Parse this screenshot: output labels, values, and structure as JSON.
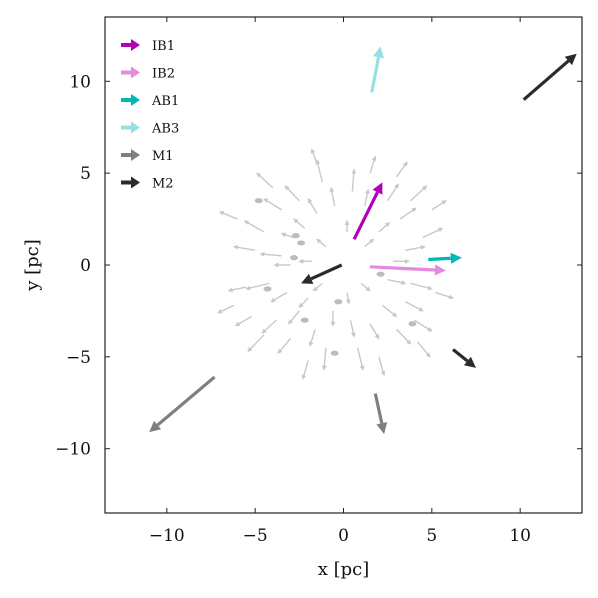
{
  "chart_data": {
    "type": "quiver",
    "title": "",
    "xlabel": "x [pc]",
    "ylabel": "y [pc]",
    "xlim": [
      -13.5,
      13.5
    ],
    "ylim": [
      -13.5,
      13.5
    ],
    "xticks": [
      -10,
      -5,
      0,
      5,
      10
    ],
    "yticks": [
      -10,
      -5,
      0,
      5,
      10
    ],
    "xtick_labels": [
      "−10",
      "−5",
      "0",
      "5",
      "10"
    ],
    "ytick_labels": [
      "−10",
      "−5",
      "0",
      "5",
      "10"
    ],
    "grid": false,
    "legend_position": "upper-left",
    "series": [
      {
        "name": "IB1",
        "color": "#b000b8",
        "arrows": [
          {
            "x": 0.6,
            "y": 1.4,
            "dx": 1.6,
            "dy": 3.1
          }
        ]
      },
      {
        "name": "IB2",
        "color": "#e68ae0",
        "arrows": [
          {
            "x": 1.5,
            "y": -0.1,
            "dx": 4.3,
            "dy": -0.2
          }
        ]
      },
      {
        "name": "AB1",
        "color": "#00b8b8",
        "arrows": [
          {
            "x": 4.8,
            "y": 0.3,
            "dx": 1.9,
            "dy": 0.1
          }
        ]
      },
      {
        "name": "AB3",
        "color": "#95e0e5",
        "arrows": [
          {
            "x": 1.6,
            "y": 9.4,
            "dx": 0.5,
            "dy": 2.5
          }
        ]
      },
      {
        "name": "M1",
        "color": "#7f7f7f",
        "arrows": [
          {
            "x": -7.3,
            "y": -6.1,
            "dx": -3.7,
            "dy": -3.0
          },
          {
            "x": 1.8,
            "y": -7.0,
            "dx": 0.5,
            "dy": -2.2
          }
        ]
      },
      {
        "name": "M2",
        "color": "#2b2b2b",
        "arrows": [
          {
            "x": -0.1,
            "y": 0.0,
            "dx": -2.3,
            "dy": -1.0
          },
          {
            "x": 6.2,
            "y": -4.6,
            "dx": 1.3,
            "dy": -1.0
          },
          {
            "x": 10.2,
            "y": 9.0,
            "dx": 3.0,
            "dy": 2.5
          }
        ]
      }
    ],
    "background_field": {
      "color": "#c8c8c8",
      "description_of_values": "cloud of small grey arrows radiating outward from the origin",
      "arrows": [
        {
          "x": -2.2,
          "y": 2.0,
          "dx": -0.6,
          "dy": 0.5
        },
        {
          "x": -2.8,
          "y": 1.5,
          "dx": -0.7,
          "dy": 0.2
        },
        {
          "x": -3.5,
          "y": 0.5,
          "dx": -1.2,
          "dy": 0.1
        },
        {
          "x": -4.5,
          "y": 1.8,
          "dx": -1.1,
          "dy": 0.6
        },
        {
          "x": -5.0,
          "y": 0.8,
          "dx": -1.2,
          "dy": 0.2
        },
        {
          "x": -4.2,
          "y": -1.0,
          "dx": -1.3,
          "dy": -0.3
        },
        {
          "x": -5.5,
          "y": -1.2,
          "dx": -1.0,
          "dy": -0.2
        },
        {
          "x": -3.2,
          "y": -1.5,
          "dx": -0.9,
          "dy": -0.5
        },
        {
          "x": -2.5,
          "y": -2.5,
          "dx": -0.6,
          "dy": -0.7
        },
        {
          "x": -3.8,
          "y": -3.0,
          "dx": -0.8,
          "dy": -0.7
        },
        {
          "x": -3.0,
          "y": -4.0,
          "dx": -0.7,
          "dy": -0.8
        },
        {
          "x": -1.6,
          "y": -3.5,
          "dx": -0.3,
          "dy": -0.9
        },
        {
          "x": -1.0,
          "y": -4.5,
          "dx": -0.1,
          "dy": -1.2
        },
        {
          "x": -0.6,
          "y": -2.5,
          "dx": 0.0,
          "dy": -0.8
        },
        {
          "x": 0.4,
          "y": -3.0,
          "dx": 0.2,
          "dy": -0.9
        },
        {
          "x": 0.8,
          "y": -4.5,
          "dx": 0.3,
          "dy": -1.2
        },
        {
          "x": 1.5,
          "y": -3.2,
          "dx": 0.5,
          "dy": -0.8
        },
        {
          "x": 2.2,
          "y": -2.2,
          "dx": 0.8,
          "dy": -0.6
        },
        {
          "x": 3.0,
          "y": -3.5,
          "dx": 0.8,
          "dy": -0.8
        },
        {
          "x": 3.5,
          "y": -2.0,
          "dx": 1.0,
          "dy": -0.5
        },
        {
          "x": 4.0,
          "y": -3.0,
          "dx": 1.0,
          "dy": -0.6
        },
        {
          "x": 2.5,
          "y": -0.8,
          "dx": 1.0,
          "dy": -0.2
        },
        {
          "x": 3.5,
          "y": 0.8,
          "dx": 1.1,
          "dy": 0.2
        },
        {
          "x": 3.8,
          "y": -1.0,
          "dx": 1.2,
          "dy": -0.3
        },
        {
          "x": 4.5,
          "y": 1.5,
          "dx": 1.1,
          "dy": 0.5
        },
        {
          "x": 3.2,
          "y": 2.5,
          "dx": 0.9,
          "dy": 0.6
        },
        {
          "x": 2.5,
          "y": 3.5,
          "dx": 0.6,
          "dy": 0.9
        },
        {
          "x": 3.8,
          "y": 3.5,
          "dx": 0.9,
          "dy": 0.8
        },
        {
          "x": 1.2,
          "y": 3.2,
          "dx": 0.2,
          "dy": 0.9
        },
        {
          "x": 0.5,
          "y": 4.0,
          "dx": 0.1,
          "dy": 1.2
        },
        {
          "x": -0.5,
          "y": 3.2,
          "dx": -0.2,
          "dy": 1.0
        },
        {
          "x": -1.2,
          "y": 4.5,
          "dx": -0.3,
          "dy": 1.2
        },
        {
          "x": -1.5,
          "y": 2.8,
          "dx": -0.5,
          "dy": 0.8
        },
        {
          "x": -2.5,
          "y": 3.5,
          "dx": -0.8,
          "dy": 0.8
        },
        {
          "x": -3.5,
          "y": 3.0,
          "dx": -1.0,
          "dy": 0.6
        },
        {
          "x": -4.0,
          "y": 4.2,
          "dx": -0.9,
          "dy": 0.8
        },
        {
          "x": -1.0,
          "y": 1.0,
          "dx": -0.5,
          "dy": 0.4
        },
        {
          "x": -1.8,
          "y": 0.2,
          "dx": -0.7,
          "dy": 0.0
        },
        {
          "x": -1.2,
          "y": -1.0,
          "dx": -0.5,
          "dy": -0.4
        },
        {
          "x": 0.2,
          "y": -1.5,
          "dx": 0.1,
          "dy": -0.6
        },
        {
          "x": 1.0,
          "y": -1.0,
          "dx": 0.5,
          "dy": -0.4
        },
        {
          "x": 1.2,
          "y": 1.0,
          "dx": 0.5,
          "dy": 0.4
        },
        {
          "x": 0.2,
          "y": 1.8,
          "dx": 0.0,
          "dy": 0.6
        },
        {
          "x": -6.0,
          "y": 2.5,
          "dx": -1.0,
          "dy": 0.4
        },
        {
          "x": -6.2,
          "y": -2.2,
          "dx": -0.9,
          "dy": -0.4
        },
        {
          "x": -4.5,
          "y": -3.8,
          "dx": -0.9,
          "dy": -0.9
        },
        {
          "x": -1.5,
          "y": 5.5,
          "dx": -0.3,
          "dy": 0.8
        },
        {
          "x": 1.5,
          "y": 5.0,
          "dx": 0.3,
          "dy": 0.9
        },
        {
          "x": 3.0,
          "y": 4.8,
          "dx": 0.6,
          "dy": 0.8
        },
        {
          "x": 5.0,
          "y": 3.0,
          "dx": 0.8,
          "dy": 0.5
        },
        {
          "x": 5.2,
          "y": -1.5,
          "dx": 1.0,
          "dy": -0.3
        },
        {
          "x": 4.2,
          "y": -4.2,
          "dx": 0.7,
          "dy": -0.8
        },
        {
          "x": 2.0,
          "y": -5.0,
          "dx": 0.3,
          "dy": -1.0
        },
        {
          "x": -2.0,
          "y": -5.2,
          "dx": -0.3,
          "dy": -1.0
        },
        {
          "x": -5.2,
          "y": -2.8,
          "dx": -0.9,
          "dy": -0.5
        },
        {
          "x": -2.0,
          "y": -1.8,
          "dx": -0.5,
          "dy": -0.5
        },
        {
          "x": 2.0,
          "y": 1.8,
          "dx": 0.6,
          "dy": 0.5
        },
        {
          "x": -3.0,
          "y": 0.0,
          "dx": -0.9,
          "dy": 0.0
        },
        {
          "x": 2.8,
          "y": 0.2,
          "dx": 0.9,
          "dy": 0.0
        }
      ],
      "blobs": [
        {
          "x": -2.7,
          "y": 1.6
        },
        {
          "x": -2.4,
          "y": 1.2
        },
        {
          "x": -2.8,
          "y": 0.4
        },
        {
          "x": -4.3,
          "y": -1.3
        },
        {
          "x": -2.2,
          "y": -3.0
        },
        {
          "x": -0.5,
          "y": -4.8
        },
        {
          "x": 3.9,
          "y": -3.2
        },
        {
          "x": 2.1,
          "y": -0.5
        },
        {
          "x": -0.3,
          "y": -2.0
        },
        {
          "x": -4.8,
          "y": 3.5
        }
      ]
    }
  }
}
